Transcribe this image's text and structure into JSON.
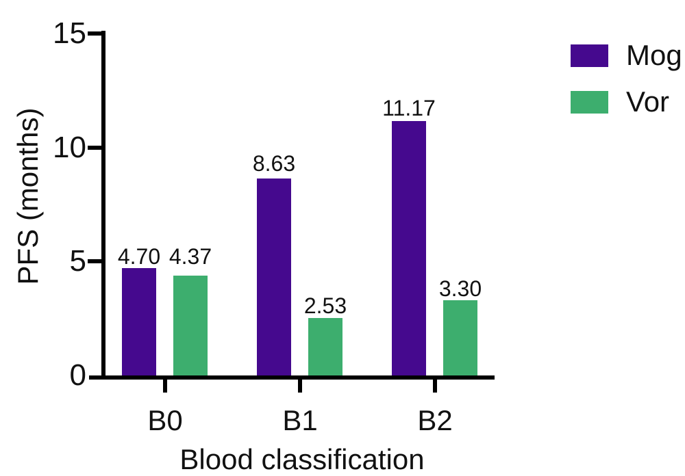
{
  "chart_data": {
    "type": "bar",
    "title": "",
    "categories": [
      "B0",
      "B1",
      "B2"
    ],
    "series": [
      {
        "name": "Mog",
        "color": "#45098E",
        "values": [
          4.7,
          8.63,
          11.17
        ],
        "labels": [
          "4.70",
          "8.63",
          "11.17"
        ]
      },
      {
        "name": "Vor",
        "color": "#3DAE6E",
        "values": [
          4.37,
          2.53,
          3.3
        ],
        "labels": [
          "4.37",
          "2.53",
          "3.30"
        ]
      }
    ],
    "xlabel": "Blood classification",
    "ylabel": "PFS (months)",
    "ylim": [
      0,
      15
    ],
    "yticks": [
      0,
      5,
      10,
      15
    ],
    "ytick_labels": [
      "0",
      "5",
      "10",
      "15"
    ],
    "grid": false,
    "legend_position": "top-right",
    "axis_color": "#000000",
    "text_color": "#111111",
    "background": "#FFFFFF"
  }
}
